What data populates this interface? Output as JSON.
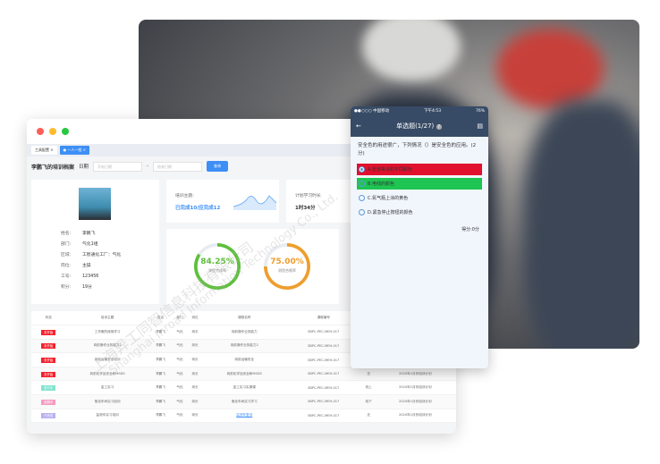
{
  "desktop": {
    "tabs": [
      {
        "label": "工具配置"
      },
      {
        "label": "一人一档"
      }
    ],
    "title": "李鹏飞的培训档案",
    "date_label": "日期",
    "start_placeholder": "开始日期",
    "end_placeholder": "结束日期",
    "separator": "-",
    "query_button": "查询",
    "profile": {
      "fields": [
        {
          "k": "姓名:",
          "v": "李鹏飞"
        },
        {
          "k": "部门:",
          "v": "气化1组"
        },
        {
          "k": "区域:",
          "v": "工智通化工厂：气化"
        },
        {
          "k": "岗位:",
          "v": "主操"
        },
        {
          "k": "工号:",
          "v": "123456"
        },
        {
          "k": "积分:",
          "v": "19分"
        }
      ]
    },
    "topic": {
      "label": "培训主题:",
      "value": "已完成10/应完成12"
    },
    "plan": {
      "label": "计划学习时长",
      "value": "1时34分"
    },
    "rings": [
      {
        "value": "84.25%",
        "label": "课程完成率",
        "percent": 84.25,
        "color": "#5ec03c"
      },
      {
        "value": "75.00%",
        "label": "测验合格率",
        "percent": 75,
        "color": "#ee9e2e"
      }
    ],
    "table": {
      "headers": [
        "状态",
        "培训主题",
        "姓名",
        "部门",
        "岗位",
        "课程名称",
        "课程编号",
        "方式",
        "计划",
        "更"
      ],
      "rows": [
        {
          "status": "未开始",
          "status_color": "#f5222d",
          "c": [
            "工作服的使用学习",
            "李鹏飞",
            "气化",
            "岗长",
            "岗前操作业务能力",
            "SBPC-PEC-MEH-017",
            "",
            "",
            ""
          ]
        },
        {
          "status": "未开始",
          "status_color": "#f5222d",
          "c": [
            "岗前操作业务能力2",
            "李鹏飞",
            "气化",
            "岗长",
            "岗前操作业务能力2",
            "SBPC-PEC-MEH-017",
            "",
            "",
            ""
          ]
        },
        {
          "status": "未开始",
          "status_color": "#f5222d",
          "c": [
            "岗前运输安全培训",
            "李鹏飞",
            "气化",
            "岗长",
            "岗前运输安全",
            "SBPC-PEC-MEH-017",
            "",
            "",
            ""
          ]
        },
        {
          "status": "未开始",
          "status_color": "#f5222d",
          "c": [
            "岗前化学品安全和MSDS",
            "李鹏飞",
            "气化",
            "岗长",
            "岗前化学品安全和MSDS",
            "SBPC-PEC-MEH-017",
            "无",
            "2020年1月份培训计划",
            "需培"
          ]
        },
        {
          "status": "进行中",
          "status_color": "#7fe3cf",
          "c": [
            "金工实习",
            "李鹏飞",
            "气化",
            "岗长",
            "金工实习实操课",
            "SBPC-PEC-MEH-017",
            "线上",
            "2020年1月份培训计划",
            "需培"
          ]
        },
        {
          "status": "延期中",
          "status_color": "#f59bc0",
          "c": [
            "瓶化车间实习培训",
            "李鹏飞",
            "气化",
            "岗长",
            "瓶化车间实习学习",
            "SBPC-PEC-MEH-017",
            "线下",
            "2020年1月份培训计划",
            "需培"
          ]
        },
        {
          "status": "已完成",
          "status_color": "#b6b1f0",
          "c": [
            "监测车实习培训",
            "李鹏飞",
            "气化",
            "岗长",
            "监测车复训",
            "SBPC-PEC-MEH-017",
            "无",
            "2020年1月份培训计划",
            "需培"
          ]
        }
      ]
    }
  },
  "phone": {
    "carrier": "●●○○○ 中国移动",
    "time": "下午4:53",
    "battery": "76%",
    "title": "单选题(1/27)",
    "question": "安全色的用途很广，下列情况（）是安全色的应用。(2分)",
    "options": [
      {
        "label": "A.管道等涂的不同颜色",
        "state": "wrong",
        "color": "#e0102e"
      },
      {
        "label": "B.电线的颜色",
        "state": "correct",
        "color": "#1ec552"
      },
      {
        "label": "C.氮气瓶上涂的黄色",
        "state": "none"
      },
      {
        "label": "D.紧急停止按钮的颜色",
        "state": "none"
      }
    ],
    "score": "得分:0分"
  },
  "watermark": [
    "上海异工同智信息科技有限公司",
    "Shanghai Inroad Information Technology Co., Ltd."
  ]
}
